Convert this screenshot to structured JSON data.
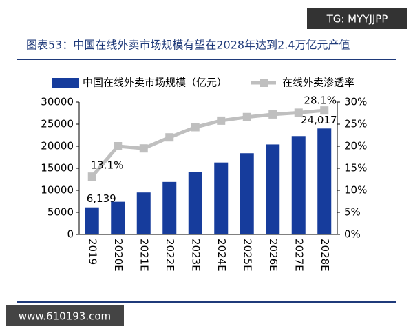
{
  "watermark_top": "TG: MYYJJPP",
  "watermark_bottom": "www.610193.com",
  "chart_data": {
    "type": "bar",
    "title": "图表53：中国在线外卖市场规模有望在2028年达到2.4万亿元产值",
    "categories": [
      "2019",
      "2020E",
      "2021E",
      "2022E",
      "2023E",
      "2024E",
      "2025E",
      "2026E",
      "2027E",
      "2028E"
    ],
    "series": [
      {
        "name": "中国在线外卖市场规模（亿元）",
        "type": "bar",
        "color": "#163c9c",
        "values": [
          6139,
          7400,
          9500,
          11900,
          14200,
          16300,
          18400,
          20400,
          22300,
          24017
        ],
        "value_labels": [
          "6,139",
          null,
          null,
          null,
          null,
          null,
          null,
          null,
          null,
          "24,017"
        ]
      },
      {
        "name": "在线外卖渗透率",
        "type": "line",
        "axis": "y2",
        "color": "#bfbfbf",
        "values": [
          13.1,
          20.0,
          19.5,
          22.0,
          24.3,
          25.8,
          26.6,
          27.2,
          27.6,
          28.1
        ],
        "value_labels": [
          "13.1%",
          null,
          null,
          null,
          null,
          null,
          null,
          null,
          null,
          "28.1%"
        ]
      }
    ],
    "ylim": [
      0,
      30000
    ],
    "yticks": [
      0,
      5000,
      10000,
      15000,
      20000,
      25000,
      30000
    ],
    "y2lim": [
      0,
      30
    ],
    "y2ticks": [
      {
        "value": 0,
        "label": "0%"
      },
      {
        "value": 5,
        "label": "5%"
      },
      {
        "value": 10,
        "label": "10%"
      },
      {
        "value": 15,
        "label": "15%"
      },
      {
        "value": 20,
        "label": "20%"
      },
      {
        "value": 25,
        "label": "25%"
      },
      {
        "value": 30,
        "label": "30%"
      }
    ],
    "legend": "top"
  }
}
